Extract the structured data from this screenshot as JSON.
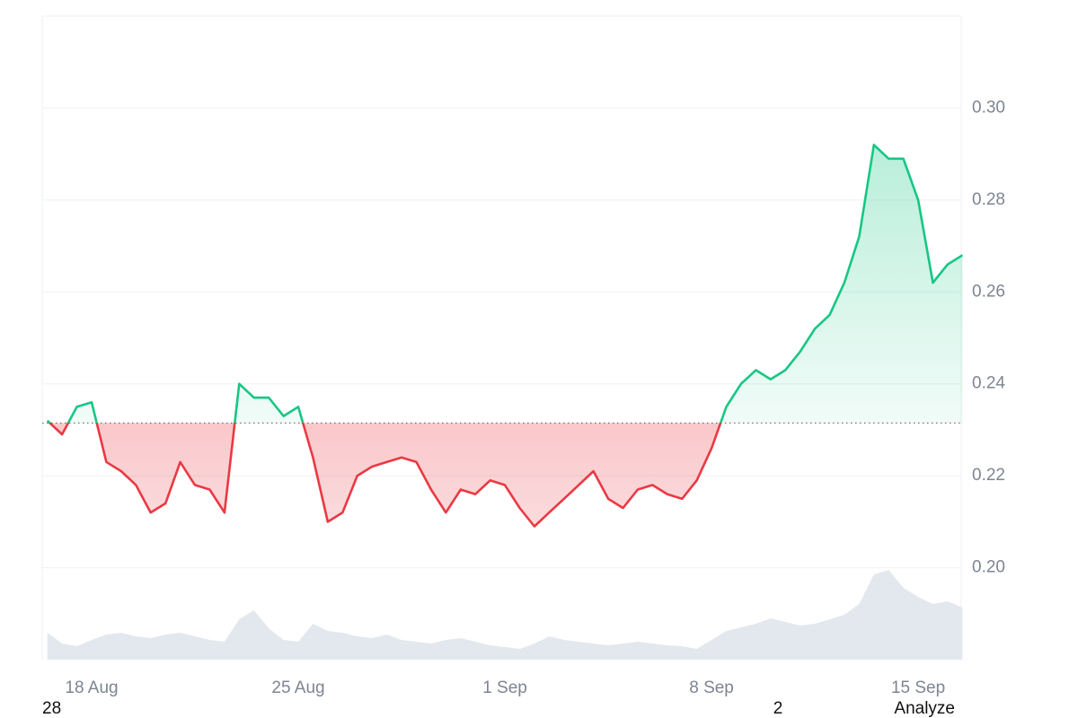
{
  "chart_data": {
    "type": "baseline",
    "categories": [
      null,
      null,
      null,
      "18 Aug",
      null,
      null,
      null,
      null,
      null,
      null,
      null,
      null,
      null,
      null,
      null,
      null,
      null,
      "25 Aug",
      null,
      null,
      null,
      null,
      null,
      null,
      null,
      null,
      null,
      null,
      null,
      null,
      null,
      "1 Sep",
      null,
      null,
      null,
      null,
      null,
      null,
      null,
      null,
      null,
      null,
      null,
      null,
      null,
      "8 Sep",
      null,
      null,
      null,
      null,
      null,
      null,
      null,
      null,
      null,
      null,
      null,
      null,
      null,
      "15 Sep",
      null,
      null,
      null
    ],
    "values": [
      0.232,
      0.229,
      0.235,
      0.236,
      0.223,
      0.221,
      0.218,
      0.212,
      0.214,
      0.223,
      0.218,
      0.217,
      0.212,
      0.24,
      0.237,
      0.237,
      0.233,
      0.235,
      0.224,
      0.21,
      0.212,
      0.22,
      0.222,
      0.223,
      0.224,
      0.223,
      0.217,
      0.212,
      0.217,
      0.216,
      0.219,
      0.218,
      0.213,
      0.209,
      0.212,
      0.215,
      0.218,
      0.221,
      0.215,
      0.213,
      0.217,
      0.218,
      0.216,
      0.215,
      0.219,
      0.226,
      0.235,
      0.24,
      0.243,
      0.241,
      0.243,
      0.247,
      0.252,
      0.255,
      0.262,
      0.272,
      0.292,
      0.289,
      0.289,
      0.28,
      0.262,
      0.266,
      0.268
    ],
    "volume": [
      30,
      18,
      15,
      22,
      28,
      30,
      26,
      24,
      28,
      30,
      26,
      22,
      20,
      45,
      55,
      35,
      22,
      20,
      40,
      32,
      30,
      26,
      24,
      28,
      22,
      20,
      18,
      22,
      24,
      20,
      16,
      14,
      12,
      18,
      26,
      22,
      20,
      18,
      16,
      18,
      20,
      18,
      16,
      15,
      12,
      22,
      32,
      36,
      40,
      46,
      42,
      38,
      40,
      45,
      50,
      62,
      95,
      100,
      80,
      70,
      62,
      65,
      58
    ],
    "baseline": 0.2315,
    "up_color": "#16c784",
    "down_color": "#ea3943",
    "volume_color": "#e3e8ee",
    "ylim": [
      0.18,
      0.32
    ],
    "yticks": [
      0.2,
      0.22,
      0.24,
      0.26,
      0.28,
      0.3
    ],
    "grid": true,
    "annotations": [
      "28",
      "2",
      "Analyze"
    ]
  }
}
